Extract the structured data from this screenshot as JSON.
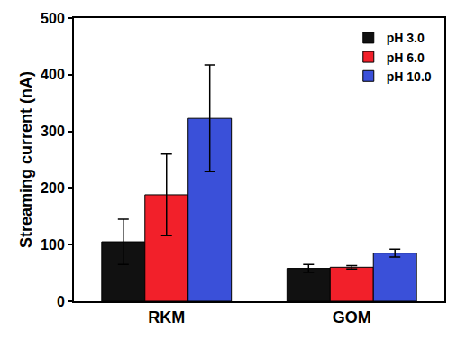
{
  "chart_data": {
    "type": "bar",
    "y_label": "Streaming current (nA)",
    "categories": [
      "RKM",
      "GOM"
    ],
    "series": [
      {
        "name": "pH 3.0",
        "color": "#111111",
        "values": [
          105,
          58
        ],
        "errors": [
          40,
          7
        ]
      },
      {
        "name": "pH 6.0",
        "color": "#f2202a",
        "values": [
          188,
          60
        ],
        "errors": [
          72,
          3
        ]
      },
      {
        "name": "pH 10.0",
        "color": "#3a50d9",
        "values": [
          323,
          85
        ],
        "errors": [
          94,
          7
        ]
      }
    ],
    "ylim": [
      0,
      500
    ],
    "yticks": [
      0,
      100,
      200,
      300,
      400,
      500
    ],
    "grid": false,
    "legend": "top right"
  }
}
